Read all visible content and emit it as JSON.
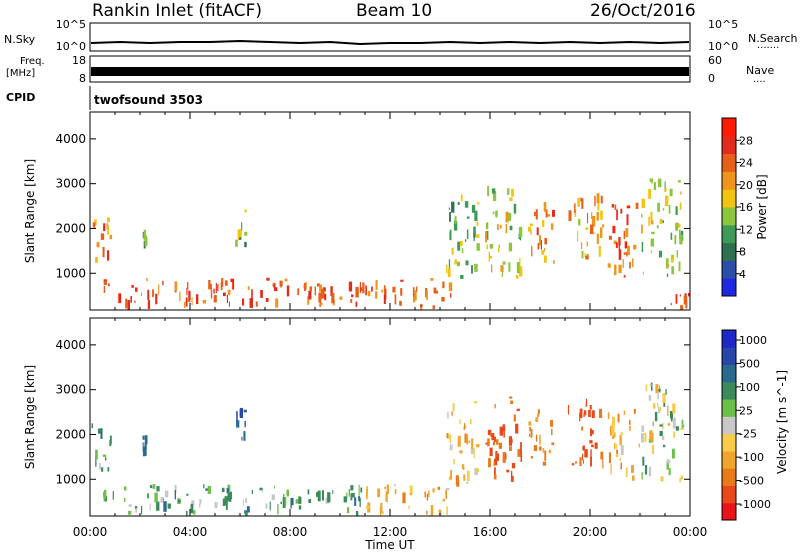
{
  "header": {
    "station": "Rankin Inlet (fitACF)",
    "beam": "Beam 10",
    "date": "26/Oct/2016"
  },
  "status_panels": {
    "nsky": {
      "label": "N.Sky",
      "right_label": "N.Search",
      "right_dots": ".......",
      "left_ticks": [
        "10^5",
        "10^0"
      ],
      "right_ticks": [
        "10^5",
        "10^0"
      ]
    },
    "freq": {
      "label_line1": "Freq.",
      "label_line2": "[MHz]",
      "right_label": "Nave",
      "right_dots": "....",
      "left_ticks": [
        "18",
        "8"
      ],
      "right_ticks": [
        "60",
        "0"
      ]
    },
    "cpid": {
      "label": "CPID",
      "value": "twofsound 3503"
    }
  },
  "colors": {
    "power": [
      "#1e28e0",
      "#2b4fa8",
      "#2f7050",
      "#3f9a56",
      "#8cc63e",
      "#f1c40f",
      "#f0951b",
      "#e6601a",
      "#e22b1b",
      "#ff1a00"
    ],
    "velocity": [
      "#e8141a",
      "#e8481a",
      "#e87a1a",
      "#f2a52c",
      "#f6cc4a",
      "#c8c8c8",
      "#6cc04a",
      "#3a8a5a",
      "#2a6a8c",
      "#2846a8",
      "#1e28c8"
    ],
    "axis": "#000000",
    "background": "#ffffff"
  },
  "chart_data": [
    {
      "type": "heatmap",
      "panel": "power",
      "ylabel": "Slant Range [km]",
      "xlabel": "",
      "x_ticks": [
        "00:00",
        "04:00",
        "08:00",
        "12:00",
        "16:00",
        "20:00",
        "00:00"
      ],
      "y_ticks": [
        1000,
        2000,
        3000,
        4000
      ],
      "ylim": [
        180,
        4600
      ],
      "xlim_hours": [
        0,
        24
      ],
      "colorbar": {
        "label": "Power [dB]",
        "ticks": [
          4,
          8,
          12,
          16,
          20,
          24,
          28
        ],
        "range": [
          0,
          32
        ]
      },
      "echo_regions": [
        {
          "t": [
            0.0,
            0.9
          ],
          "r": [
            1150,
            2250
          ],
          "value": 22
        },
        {
          "t": [
            0.5,
            12.0
          ],
          "r": [
            180,
            900
          ],
          "value": 25
        },
        {
          "t": [
            2.1,
            2.3
          ],
          "r": [
            1500,
            2000
          ],
          "value": 12
        },
        {
          "t": [
            5.7,
            6.3
          ],
          "r": [
            1500,
            2600
          ],
          "value": 14
        },
        {
          "t": [
            12.0,
            14.5
          ],
          "r": [
            180,
            900
          ],
          "value": 22
        },
        {
          "t": [
            14.2,
            15.6
          ],
          "r": [
            800,
            2800
          ],
          "value": 14
        },
        {
          "t": [
            15.8,
            17.3
          ],
          "r": [
            800,
            3000
          ],
          "value": 16
        },
        {
          "t": [
            17.5,
            18.6
          ],
          "r": [
            1100,
            2600
          ],
          "value": 22
        },
        {
          "t": [
            19.1,
            20.6
          ],
          "r": [
            1200,
            2800
          ],
          "value": 20
        },
        {
          "t": [
            20.7,
            22.0
          ],
          "r": [
            900,
            2600
          ],
          "value": 26
        },
        {
          "t": [
            22.0,
            23.8
          ],
          "r": [
            900,
            3200
          ],
          "value": 16
        },
        {
          "t": [
            23.0,
            24.0
          ],
          "r": [
            180,
            600
          ],
          "value": 27
        }
      ]
    },
    {
      "type": "heatmap",
      "panel": "velocity",
      "ylabel": "Slant Range [km]",
      "xlabel": "Time UT",
      "x_ticks": [
        "00:00",
        "04:00",
        "08:00",
        "12:00",
        "16:00",
        "20:00",
        "00:00"
      ],
      "y_ticks": [
        1000,
        2000,
        3000,
        4000
      ],
      "ylim": [
        180,
        4600
      ],
      "xlim_hours": [
        0,
        24
      ],
      "colorbar": {
        "label": "Velocity [m s^-1]",
        "ticks": [
          "1000",
          "500",
          "100",
          "25",
          "-25",
          "-100",
          "-500",
          "-1000"
        ]
      },
      "echo_regions": [
        {
          "t": [
            0.0,
            0.9
          ],
          "r": [
            1150,
            2250
          ],
          "value": 150
        },
        {
          "t": [
            0.5,
            11.0
          ],
          "r": [
            180,
            900
          ],
          "value": 120
        },
        {
          "t": [
            2.1,
            2.3
          ],
          "r": [
            1500,
            2000
          ],
          "value": 400
        },
        {
          "t": [
            5.7,
            6.3
          ],
          "r": [
            1500,
            2600
          ],
          "value": 500
        },
        {
          "t": [
            11.0,
            14.5
          ],
          "r": [
            180,
            900
          ],
          "value": -150
        },
        {
          "t": [
            14.2,
            15.6
          ],
          "r": [
            800,
            2800
          ],
          "value": -150
        },
        {
          "t": [
            15.8,
            17.3
          ],
          "r": [
            900,
            3000
          ],
          "value": -500
        },
        {
          "t": [
            17.5,
            18.6
          ],
          "r": [
            1100,
            2600
          ],
          "value": -250
        },
        {
          "t": [
            19.1,
            20.6
          ],
          "r": [
            1200,
            2800
          ],
          "value": -600
        },
        {
          "t": [
            20.7,
            22.0
          ],
          "r": [
            900,
            2600
          ],
          "value": -150
        },
        {
          "t": [
            22.0,
            23.8
          ],
          "r": [
            900,
            3200
          ],
          "value": 10
        }
      ]
    }
  ]
}
